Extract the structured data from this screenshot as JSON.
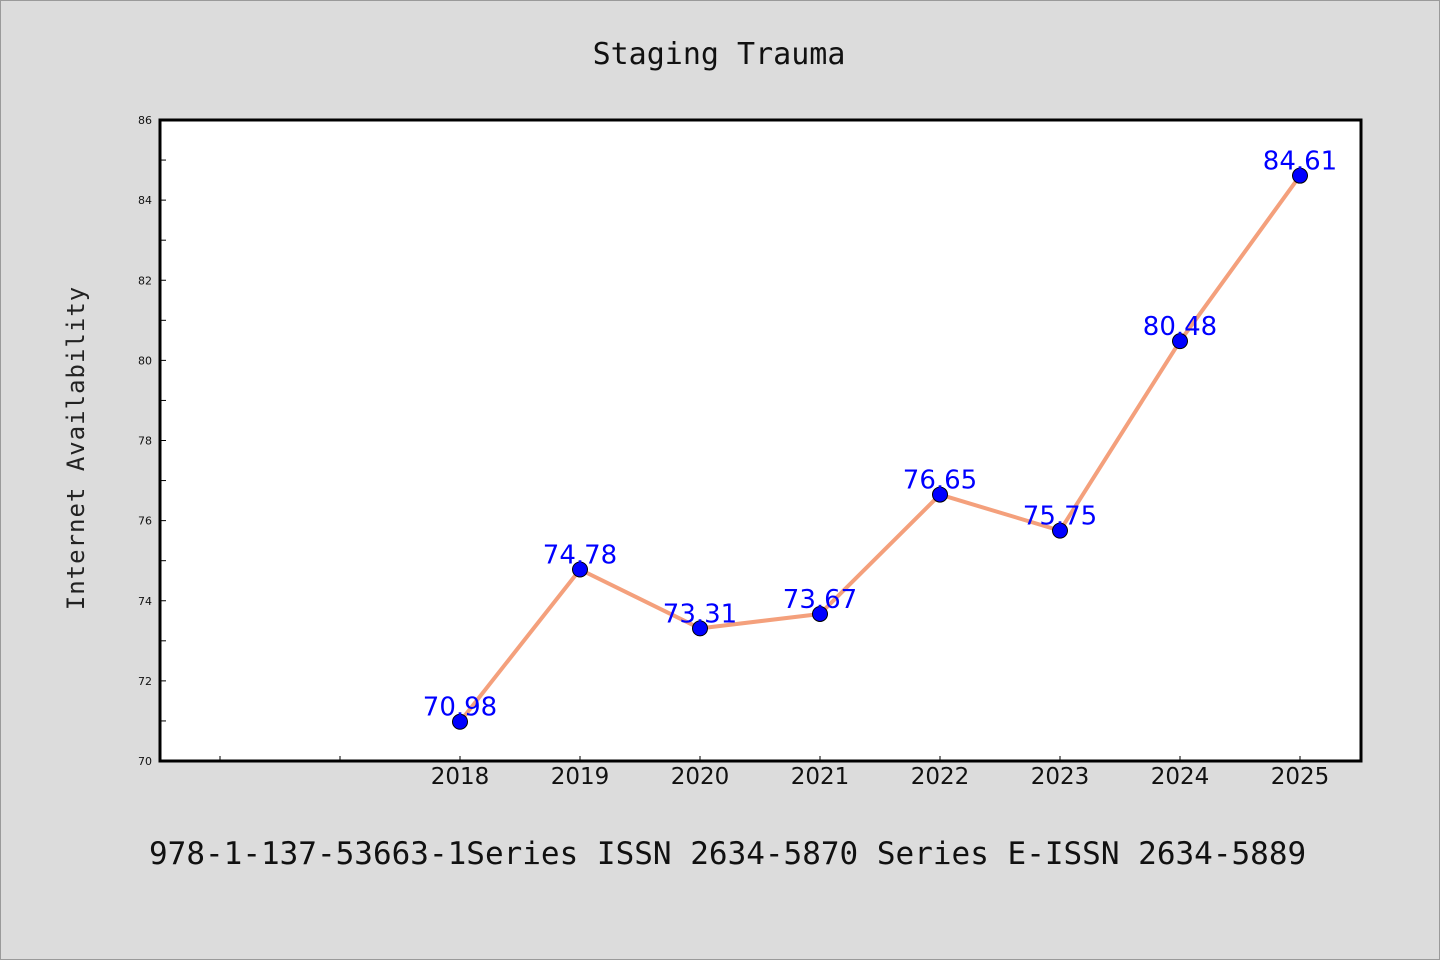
{
  "chart_data": {
    "type": "line",
    "title": "Staging Trauma",
    "xlabel": "",
    "ylabel": "Internet Availability",
    "categories": [
      "2018",
      "2019",
      "2020",
      "2021",
      "2022",
      "2023",
      "2024",
      "2025"
    ],
    "series": [
      {
        "values": [
          70.98,
          74.78,
          73.31,
          73.67,
          76.65,
          75.75,
          80.48,
          84.61
        ],
        "data_labels": [
          "70.98",
          "74.78",
          "73.31",
          "73.67",
          "76.65",
          "75.75",
          "80.48",
          "84.61"
        ],
        "line_color": "#f4a07c",
        "marker_color": "#0000ff"
      }
    ],
    "ylim": [
      70,
      86
    ],
    "yticks": [
      "70",
      "72",
      "74",
      "76",
      "78",
      "80",
      "82",
      "84",
      "86"
    ],
    "grid": false,
    "legend": "none"
  },
  "footer_text": "978-1-137-53663-1Series ISSN 2634-5870 Series E-ISSN 2634-5889"
}
